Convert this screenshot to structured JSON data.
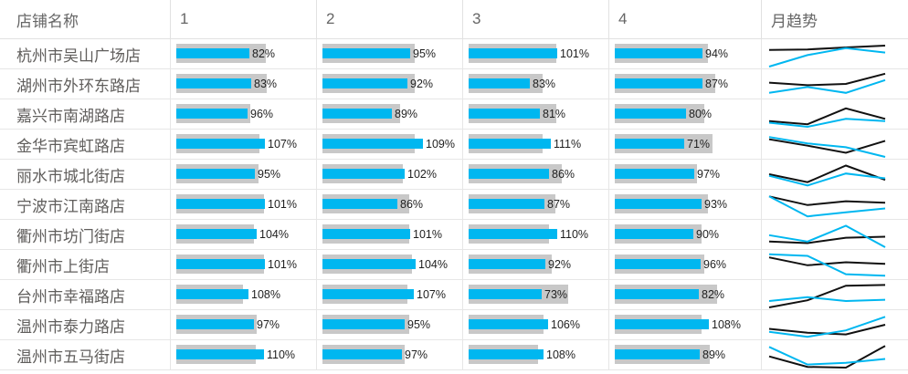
{
  "colors": {
    "bar_actual_blue": "#00b7f0",
    "bar_track_gray": "#c8c8c8",
    "spark_black": "#111111",
    "spark_blue": "#00b7f0",
    "grid_line": "#e6e6e6",
    "header_text": "#666666",
    "store_text": "#605e5c",
    "value_text": "#1f1f1f",
    "background": "#ffffff"
  },
  "header": {
    "columns": [
      "店铺名称",
      "1",
      "2",
      "3",
      "4",
      "月趋势"
    ]
  },
  "chart_data": {
    "type": "table",
    "title": "",
    "unit": "%",
    "columns": [
      "店铺名称",
      "1",
      "2",
      "3",
      "4",
      "月趋势"
    ],
    "legend": [
      {
        "name": "actual-bar",
        "color": "#00b7f0"
      },
      {
        "name": "target-track",
        "color": "#c8c8c8"
      },
      {
        "name": "trend-line-black",
        "color": "#111111"
      },
      {
        "name": "trend-line-blue",
        "color": "#00b7f0"
      }
    ],
    "rows": [
      {
        "store": "杭州市吴山广场店",
        "values": [
          82,
          95,
          101,
          94
        ],
        "track_frac": [
          0.63,
          0.65,
          0.62,
          0.66
        ],
        "spark_black": [
          0.35,
          0.33,
          0.25,
          0.18
        ],
        "spark_blue": [
          1.0,
          0.55,
          0.28,
          0.45
        ]
      },
      {
        "store": "湖州市外环东路店",
        "values": [
          83,
          92,
          83,
          87
        ],
        "track_frac": [
          0.64,
          0.65,
          0.52,
          0.71
        ],
        "spark_black": [
          0.45,
          0.55,
          0.5,
          0.1
        ],
        "spark_blue": [
          0.85,
          0.62,
          0.85,
          0.35
        ]
      },
      {
        "store": "嘉兴市南湖路店",
        "values": [
          96,
          89,
          81,
          80
        ],
        "track_frac": [
          0.52,
          0.55,
          0.62,
          0.63
        ],
        "spark_black": [
          0.78,
          0.9,
          0.28,
          0.69
        ],
        "spark_blue": [
          0.84,
          1.0,
          0.69,
          0.78
        ]
      },
      {
        "store": "金华市宾虹路店",
        "values": [
          107,
          109,
          111,
          71
        ],
        "track_frac": [
          0.59,
          0.65,
          0.52,
          0.69
        ],
        "spark_black": [
          0.31,
          0.56,
          0.84,
          0.37
        ],
        "spark_blue": [
          0.22,
          0.47,
          0.62,
          1.0
        ]
      },
      {
        "store": "丽水市城北街店",
        "values": [
          95,
          102,
          86,
          97
        ],
        "track_frac": [
          0.58,
          0.57,
          0.66,
          0.58
        ],
        "spark_black": [
          0.5,
          0.81,
          0.16,
          0.72
        ],
        "spark_blue": [
          0.56,
          0.94,
          0.47,
          0.66
        ]
      },
      {
        "store": "宁波市江南路店",
        "values": [
          101,
          86,
          87,
          93
        ],
        "track_frac": [
          0.62,
          0.61,
          0.61,
          0.66
        ],
        "spark_black": [
          0.19,
          0.53,
          0.38,
          0.44
        ],
        "spark_blue": [
          0.19,
          0.97,
          0.81,
          0.66
        ]
      },
      {
        "store": "衢州市坊门街店",
        "values": [
          104,
          101,
          110,
          90
        ],
        "track_frac": [
          0.55,
          0.61,
          0.57,
          0.61
        ],
        "spark_black": [
          0.78,
          0.84,
          0.63,
          0.59
        ],
        "spark_blue": [
          0.53,
          0.78,
          0.16,
          1.0
        ]
      },
      {
        "store": "衢州市上街店",
        "values": [
          101,
          104,
          92,
          96
        ],
        "track_frac": [
          0.62,
          0.63,
          0.59,
          0.63
        ],
        "spark_black": [
          0.22,
          0.53,
          0.41,
          0.47
        ],
        "spark_blue": [
          0.1,
          0.16,
          0.88,
          0.94
        ]
      },
      {
        "store": "台州市幸福路店",
        "values": [
          108,
          107,
          73,
          82
        ],
        "track_frac": [
          0.47,
          0.6,
          0.7,
          0.72
        ],
        "spark_black": [
          1.0,
          0.72,
          0.15,
          0.12
        ],
        "spark_blue": [
          0.75,
          0.6,
          0.75,
          0.7
        ]
      },
      {
        "store": "温州市泰力路店",
        "values": [
          97,
          95,
          106,
          108
        ],
        "track_frac": [
          0.57,
          0.61,
          0.53,
          0.61
        ],
        "spark_black": [
          0.66,
          0.81,
          0.88,
          0.5
        ],
        "spark_blue": [
          0.78,
          0.97,
          0.72,
          0.19
        ]
      },
      {
        "store": "温州市五马街店",
        "values": [
          110,
          97,
          108,
          89
        ],
        "track_frac": [
          0.56,
          0.58,
          0.49,
          0.67
        ],
        "spark_black": [
          0.56,
          0.97,
          1.0,
          0.15
        ],
        "spark_blue": [
          0.19,
          0.88,
          0.81,
          0.66
        ]
      }
    ]
  }
}
